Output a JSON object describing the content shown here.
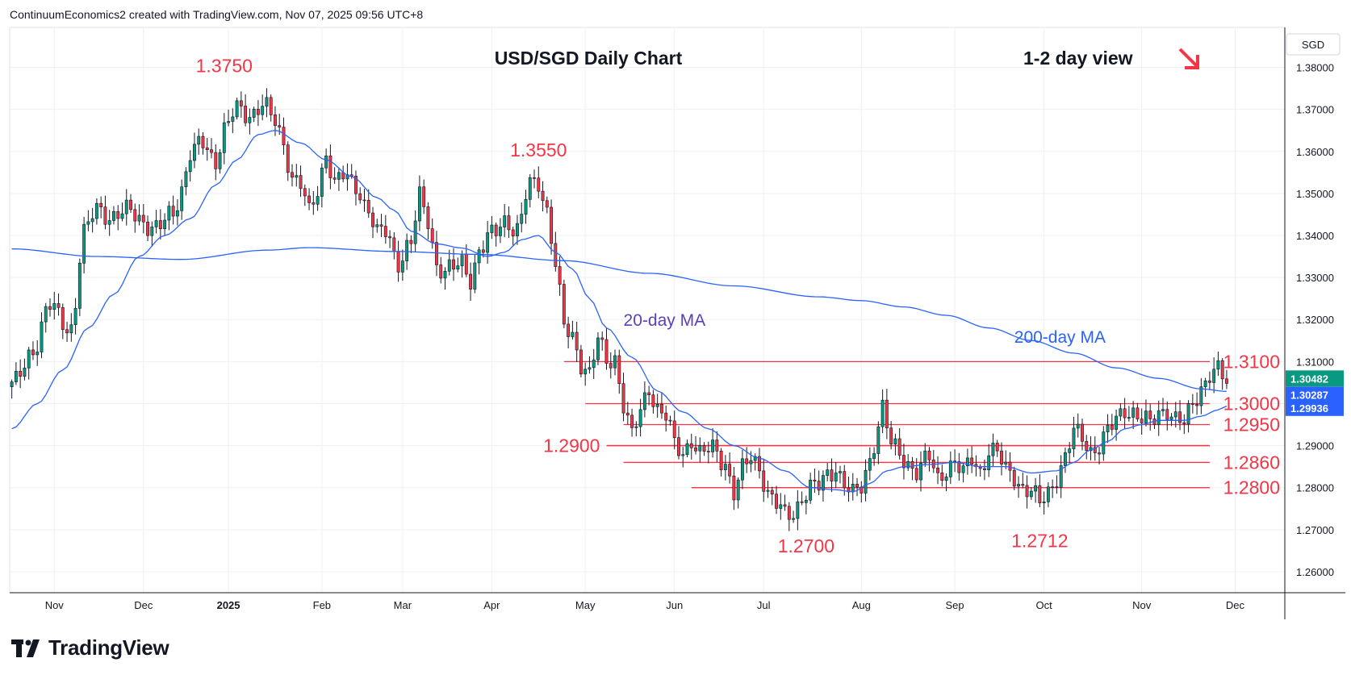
{
  "header": "ContinuumEconomics2 created with TradingView.com, Nov 07, 2025 09:56 UTC+8",
  "brand": "TradingView",
  "chart_data": {
    "type": "candlestick",
    "title": "USD/SGD Daily Chart",
    "subtitle": "1-2 day view",
    "view_direction": "down",
    "currency": "SGD",
    "ylim": [
      1.255,
      1.3895
    ],
    "y_ticks": [
      "1.38000",
      "1.37000",
      "1.36000",
      "1.35000",
      "1.34000",
      "1.33000",
      "1.32000",
      "1.31000",
      "1.30000",
      "1.29000",
      "1.28000",
      "1.27000",
      "1.26000"
    ],
    "x_ticks": [
      {
        "label": "Nov",
        "idx": 10
      },
      {
        "label": "Dec",
        "idx": 31
      },
      {
        "label": "2025",
        "idx": 51,
        "bold": true
      },
      {
        "label": "Feb",
        "idx": 73
      },
      {
        "label": "Mar",
        "idx": 92
      },
      {
        "label": "Apr",
        "idx": 113
      },
      {
        "label": "May",
        "idx": 135
      },
      {
        "label": "Jun",
        "idx": 156
      },
      {
        "label": "Jul",
        "idx": 177
      },
      {
        "label": "Aug",
        "idx": 200
      },
      {
        "label": "Sep",
        "idx": 222
      },
      {
        "label": "Oct",
        "idx": 243
      },
      {
        "label": "Nov",
        "idx": 266
      },
      {
        "label": "Dec",
        "idx": 288
      }
    ],
    "n_slots": 300,
    "price_anchors": [
      [
        0,
        1.304
      ],
      [
        5,
        1.313
      ],
      [
        9,
        1.323
      ],
      [
        14,
        1.318
      ],
      [
        17,
        1.34
      ],
      [
        20,
        1.347
      ],
      [
        24,
        1.344
      ],
      [
        28,
        1.346
      ],
      [
        34,
        1.341
      ],
      [
        38,
        1.346
      ],
      [
        40,
        1.351
      ],
      [
        42,
        1.359
      ],
      [
        45,
        1.362
      ],
      [
        48,
        1.358
      ],
      [
        50,
        1.365
      ],
      [
        53,
        1.37
      ],
      [
        56,
        1.369
      ],
      [
        59,
        1.371
      ],
      [
        62,
        1.367
      ],
      [
        64,
        1.362
      ],
      [
        66,
        1.354
      ],
      [
        68,
        1.352
      ],
      [
        70,
        1.345
      ],
      [
        72,
        1.351
      ],
      [
        74,
        1.36
      ],
      [
        76,
        1.352
      ],
      [
        78,
        1.354
      ],
      [
        81,
        1.352
      ],
      [
        84,
        1.346
      ],
      [
        86,
        1.34
      ],
      [
        88,
        1.341
      ],
      [
        91,
        1.334
      ],
      [
        94,
        1.338
      ],
      [
        96,
        1.349
      ],
      [
        98,
        1.344
      ],
      [
        100,
        1.333
      ],
      [
        102,
        1.331
      ],
      [
        104,
        1.332
      ],
      [
        106,
        1.334
      ],
      [
        108,
        1.33
      ],
      [
        110,
        1.336
      ],
      [
        113,
        1.34
      ],
      [
        116,
        1.344
      ],
      [
        119,
        1.341
      ],
      [
        122,
        1.352
      ],
      [
        124,
        1.353
      ],
      [
        126,
        1.346
      ],
      [
        128,
        1.333
      ],
      [
        130,
        1.318
      ],
      [
        132,
        1.316
      ],
      [
        134,
        1.31
      ],
      [
        136,
        1.307
      ],
      [
        138,
        1.315
      ],
      [
        140,
        1.31
      ],
      [
        142,
        1.311
      ],
      [
        144,
        1.3
      ],
      [
        146,
        1.292
      ],
      [
        148,
        1.298
      ],
      [
        150,
        1.304
      ],
      [
        152,
        1.299
      ],
      [
        154,
        1.297
      ],
      [
        156,
        1.29
      ],
      [
        158,
        1.288
      ],
      [
        160,
        1.292
      ],
      [
        162,
        1.288
      ],
      [
        165,
        1.289
      ],
      [
        168,
        1.286
      ],
      [
        170,
        1.279
      ],
      [
        172,
        1.284
      ],
      [
        174,
        1.287
      ],
      [
        176,
        1.285
      ],
      [
        178,
        1.279
      ],
      [
        180,
        1.276
      ],
      [
        182,
        1.273
      ],
      [
        184,
        1.274
      ],
      [
        186,
        1.278
      ],
      [
        188,
        1.28
      ],
      [
        190,
        1.28
      ],
      [
        192,
        1.283
      ],
      [
        194,
        1.285
      ],
      [
        196,
        1.281
      ],
      [
        198,
        1.278
      ],
      [
        200,
        1.28
      ],
      [
        202,
        1.287
      ],
      [
        204,
        1.295
      ],
      [
        205,
        1.299
      ],
      [
        207,
        1.29
      ],
      [
        209,
        1.288
      ],
      [
        211,
        1.286
      ],
      [
        213,
        1.284
      ],
      [
        216,
        1.287
      ],
      [
        218,
        1.282
      ],
      [
        220,
        1.285
      ],
      [
        222,
        1.286
      ],
      [
        224,
        1.283
      ],
      [
        226,
        1.287
      ],
      [
        228,
        1.284
      ],
      [
        230,
        1.289
      ],
      [
        232,
        1.288
      ],
      [
        234,
        1.284
      ],
      [
        236,
        1.283
      ],
      [
        238,
        1.28
      ],
      [
        240,
        1.279
      ],
      [
        242,
        1.276
      ],
      [
        244,
        1.279
      ],
      [
        246,
        1.283
      ],
      [
        248,
        1.287
      ],
      [
        250,
        1.293
      ],
      [
        252,
        1.292
      ],
      [
        254,
        1.289
      ],
      [
        256,
        1.29
      ],
      [
        258,
        1.293
      ],
      [
        260,
        1.296
      ],
      [
        262,
        1.299
      ],
      [
        264,
        1.298
      ],
      [
        266,
        1.296
      ],
      [
        268,
        1.295
      ],
      [
        270,
        1.298
      ],
      [
        272,
        1.299
      ],
      [
        274,
        1.296
      ],
      [
        276,
        1.295
      ],
      [
        278,
        1.3
      ],
      [
        280,
        1.304
      ],
      [
        282,
        1.307
      ],
      [
        284,
        1.3075
      ],
      [
        286,
        1.3048
      ]
    ],
    "ma20_anchors": [
      [
        0,
        1.294
      ],
      [
        6,
        1.3
      ],
      [
        12,
        1.308
      ],
      [
        18,
        1.318
      ],
      [
        24,
        1.326
      ],
      [
        30,
        1.335
      ],
      [
        36,
        1.34
      ],
      [
        42,
        1.344
      ],
      [
        48,
        1.352
      ],
      [
        53,
        1.358
      ],
      [
        58,
        1.364
      ],
      [
        62,
        1.365
      ],
      [
        68,
        1.362
      ],
      [
        74,
        1.358
      ],
      [
        80,
        1.354
      ],
      [
        86,
        1.349
      ],
      [
        90,
        1.346
      ],
      [
        94,
        1.341
      ],
      [
        100,
        1.338
      ],
      [
        106,
        1.337
      ],
      [
        112,
        1.335
      ],
      [
        116,
        1.336
      ],
      [
        120,
        1.339
      ],
      [
        124,
        1.34
      ],
      [
        128,
        1.336
      ],
      [
        132,
        1.332
      ],
      [
        136,
        1.325
      ],
      [
        140,
        1.318
      ],
      [
        146,
        1.311
      ],
      [
        152,
        1.303
      ],
      [
        158,
        1.298
      ],
      [
        164,
        1.294
      ],
      [
        170,
        1.29
      ],
      [
        176,
        1.287
      ],
      [
        182,
        1.284
      ],
      [
        188,
        1.28
      ],
      [
        194,
        1.2795
      ],
      [
        198,
        1.279
      ],
      [
        202,
        1.281
      ],
      [
        206,
        1.284
      ],
      [
        210,
        1.285
      ],
      [
        216,
        1.2855
      ],
      [
        222,
        1.286
      ],
      [
        228,
        1.285
      ],
      [
        234,
        1.285
      ],
      [
        240,
        1.2835
      ],
      [
        246,
        1.284
      ],
      [
        250,
        1.286
      ],
      [
        254,
        1.289
      ],
      [
        258,
        1.291
      ],
      [
        262,
        1.294
      ],
      [
        266,
        1.295
      ],
      [
        270,
        1.296
      ],
      [
        276,
        1.296
      ],
      [
        280,
        1.297
      ],
      [
        284,
        1.2985
      ],
      [
        286,
        1.2994
      ]
    ],
    "ma200_anchors": [
      [
        0,
        1.3368
      ],
      [
        20,
        1.335
      ],
      [
        40,
        1.3343
      ],
      [
        60,
        1.3365
      ],
      [
        70,
        1.3371
      ],
      [
        90,
        1.3362
      ],
      [
        110,
        1.3355
      ],
      [
        130,
        1.334
      ],
      [
        150,
        1.331
      ],
      [
        170,
        1.328
      ],
      [
        190,
        1.3254
      ],
      [
        200,
        1.3245
      ],
      [
        210,
        1.323
      ],
      [
        220,
        1.321
      ],
      [
        230,
        1.318
      ],
      [
        240,
        1.315
      ],
      [
        250,
        1.312
      ],
      [
        260,
        1.3085
      ],
      [
        270,
        1.306
      ],
      [
        280,
        1.3035
      ],
      [
        286,
        1.3029
      ]
    ],
    "levels": [
      {
        "label": "1.3100",
        "value": 1.31,
        "from_idx": 130
      },
      {
        "label": "1.3000",
        "value": 1.3,
        "from_idx": 135
      },
      {
        "label": "1.2950",
        "value": 1.295,
        "from_idx": 144
      },
      {
        "label": "1.2900",
        "value": 1.29,
        "from_idx": 140
      },
      {
        "label": "1.2860",
        "value": 1.286,
        "from_idx": 144
      },
      {
        "label": "1.2800",
        "value": 1.28,
        "from_idx": 160
      }
    ],
    "annotations": [
      {
        "label": "1.3750",
        "idx": 50,
        "value": 1.375
      },
      {
        "label": "1.3550",
        "idx": 124,
        "value": 1.355
      },
      {
        "label": "1.2700",
        "idx": 187,
        "value": 1.27
      },
      {
        "label": "1.2712",
        "idx": 242,
        "value": 1.2712
      }
    ],
    "ma_labels": {
      "ma20": "20-day MA",
      "ma200": "200-day MA"
    },
    "last_price": {
      "value": 1.30482,
      "label": "1.30482"
    },
    "ma200_price": {
      "value": 1.30287,
      "label": "1.30287"
    },
    "ma20_price": {
      "value": 1.29936,
      "label": "1.29936"
    },
    "colors": {
      "up": "#089981",
      "down": "#f23645",
      "ma": "#2962ff",
      "ma20_label": "#5b3fbf",
      "level": "#f23645",
      "grid": "#eef0f3"
    }
  }
}
